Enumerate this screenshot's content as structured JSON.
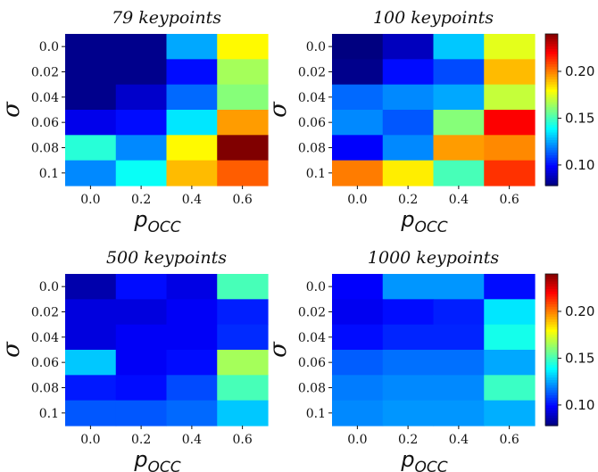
{
  "chart_data": [
    {
      "type": "heatmap",
      "title": "79 keypoints",
      "xlabel_main": "p",
      "xlabel_sub": "OCC",
      "ylabel": "σ",
      "x": [
        "0.0",
        "0.2",
        "0.4",
        "0.6"
      ],
      "y": [
        "0.0",
        "0.02",
        "0.04",
        "0.06",
        "0.08",
        "0.1"
      ],
      "values": [
        [
          0.08,
          0.08,
          0.125,
          0.18
        ],
        [
          0.08,
          0.08,
          0.1,
          0.165
        ],
        [
          0.08,
          0.09,
          0.115,
          0.16
        ],
        [
          0.095,
          0.1,
          0.135,
          0.195
        ],
        [
          0.145,
          0.12,
          0.18,
          0.24
        ],
        [
          0.12,
          0.14,
          0.19,
          0.205
        ]
      ],
      "colorbar": false
    },
    {
      "type": "heatmap",
      "title": "100 keypoints",
      "xlabel_main": "p",
      "xlabel_sub": "OCC",
      "ylabel": "σ",
      "x": [
        "0.0",
        "0.2",
        "0.4",
        "0.6"
      ],
      "y": [
        "0.0",
        "0.02",
        "0.04",
        "0.06",
        "0.08",
        "0.1"
      ],
      "values": [
        [
          0.078,
          0.088,
          0.13,
          0.175
        ],
        [
          0.08,
          0.1,
          0.11,
          0.19
        ],
        [
          0.115,
          0.12,
          0.125,
          0.17
        ],
        [
          0.12,
          0.112,
          0.16,
          0.22
        ],
        [
          0.098,
          0.12,
          0.195,
          0.198
        ],
        [
          0.2,
          0.182,
          0.15,
          0.212
        ]
      ],
      "colorbar": true,
      "colorbar_ticks": [
        "0.10",
        "0.15",
        "0.20"
      ]
    },
    {
      "type": "heatmap",
      "title": "500 keypoints",
      "xlabel_main": "p",
      "xlabel_sub": "OCC",
      "ylabel": "σ",
      "x": [
        "0.0",
        "0.2",
        "0.4",
        "0.6"
      ],
      "y": [
        "0.0",
        "0.02",
        "0.04",
        "0.06",
        "0.08",
        "0.1"
      ],
      "values": [
        [
          0.085,
          0.1,
          0.094,
          0.15
        ],
        [
          0.093,
          0.093,
          0.097,
          0.103
        ],
        [
          0.093,
          0.097,
          0.097,
          0.105
        ],
        [
          0.13,
          0.097,
          0.1,
          0.165
        ],
        [
          0.102,
          0.1,
          0.11,
          0.15
        ],
        [
          0.112,
          0.112,
          0.115,
          0.13
        ]
      ],
      "colorbar": false
    },
    {
      "type": "heatmap",
      "title": "1000 keypoints",
      "xlabel_main": "p",
      "xlabel_sub": "OCC",
      "ylabel": "σ",
      "x": [
        "0.0",
        "0.2",
        "0.4",
        "0.6"
      ],
      "y": [
        "0.0",
        "0.02",
        "0.04",
        "0.06",
        "0.08",
        "0.1"
      ],
      "values": [
        [
          0.098,
          0.122,
          0.122,
          0.1
        ],
        [
          0.096,
          0.1,
          0.103,
          0.135
        ],
        [
          0.1,
          0.104,
          0.104,
          0.142
        ],
        [
          0.113,
          0.116,
          0.116,
          0.125
        ],
        [
          0.118,
          0.12,
          0.12,
          0.148
        ],
        [
          0.12,
          0.122,
          0.122,
          0.126
        ]
      ],
      "colorbar": true,
      "colorbar_ticks": [
        "0.10",
        "0.15",
        "0.20"
      ]
    }
  ],
  "color_scale": {
    "colormap": "jet",
    "vmin": 0.078,
    "vmax": 0.24
  }
}
